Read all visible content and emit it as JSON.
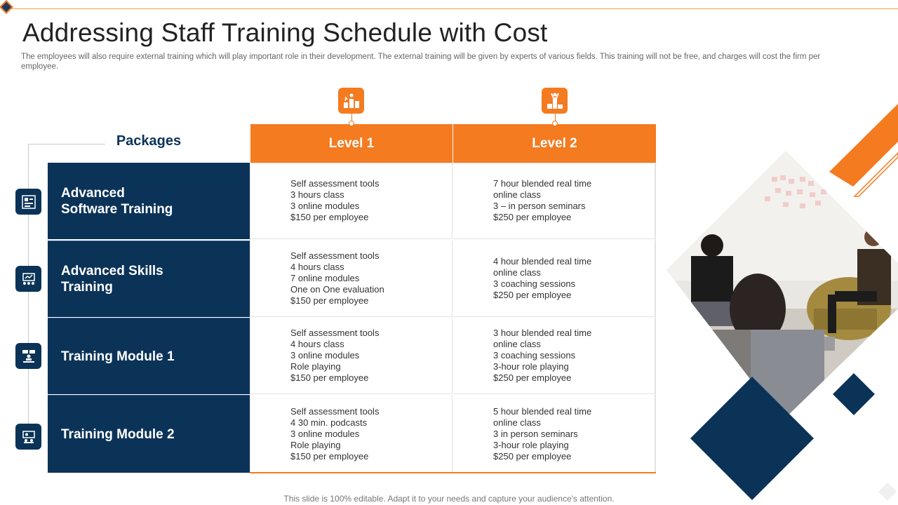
{
  "title": "Addressing Staff Training Schedule with Cost",
  "subtitle": "The employees will also require external training which will play important role in their development. The external training will be given by experts of various fields. This training will not be free, and charges will cost the firm per employee.",
  "table": {
    "packages_label": "Packages",
    "levels": [
      "Level 1",
      "Level 2"
    ],
    "rows": [
      {
        "name": "Advanced Software Training",
        "level1": [
          "Self assessment tools",
          "3 hours class",
          "3 online modules",
          "$150 per employee"
        ],
        "level2": [
          "7 hour blended real time",
          "online class",
          "3 – in person seminars",
          "$250 per employee"
        ]
      },
      {
        "name": "Advanced Skills Training",
        "level1": [
          "Self assessment tools",
          "4 hours class",
          "7 online modules",
          "One on One evaluation",
          "$150 per employee"
        ],
        "level2": [
          "4 hour blended real time",
          "online class",
          "3 coaching sessions",
          "$250 per employee"
        ]
      },
      {
        "name": "Training Module 1",
        "level1": [
          "Self assessment tools",
          "4 hours class",
          "3 online modules",
          "Role playing",
          "$150 per employee"
        ],
        "level2": [
          "3 hour blended real time",
          "online class",
          "3 coaching sessions",
          "3-hour role playing",
          "$250 per employee"
        ]
      },
      {
        "name": "Training Module 2",
        "level1": [
          "Self assessment tools",
          "4  30 min. podcasts",
          "3 online modules",
          "Role playing",
          "$150 per employee"
        ],
        "level2": [
          "5 hour blended real time",
          "online class",
          "3 in person seminars",
          "3-hour role playing",
          "$250 per employee"
        ]
      }
    ]
  },
  "icons": {
    "level1": "podium-rising-icon",
    "level2": "winners-podium-icon",
    "rows": [
      "software-training-icon",
      "skills-training-icon",
      "team-module-icon",
      "presentation-module-icon"
    ]
  },
  "footer": "This slide is 100% editable. Adapt it to your needs and capture your audience's attention.",
  "colors": {
    "accent": "#f47b20",
    "navy": "#0b3358"
  }
}
